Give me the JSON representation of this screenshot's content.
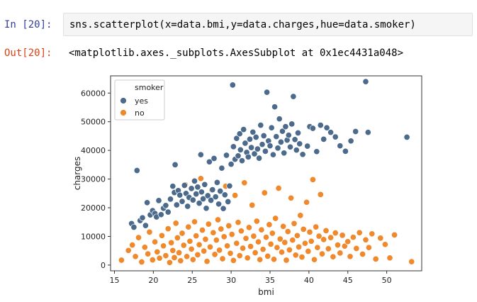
{
  "cell": {
    "in_prompt": "In [20]:",
    "code": "sns.scatterplot(x=data.bmi,y=data.charges,hue=data.smoker)",
    "out_prompt": "Out[20]:",
    "output_text": "<matplotlib.axes._subplots.AxesSubplot at 0x1ec4431a048>"
  },
  "chart_data": {
    "type": "scatter",
    "xlabel": "bmi",
    "ylabel": "charges",
    "xlim": [
      14.5,
      54.5
    ],
    "ylim": [
      -2000,
      66000
    ],
    "xticks": [
      15,
      20,
      25,
      30,
      35,
      40,
      45,
      50
    ],
    "yticks": [
      0,
      10000,
      20000,
      30000,
      40000,
      50000,
      60000
    ],
    "grid": false,
    "legend": {
      "title": "smoker",
      "placement": "top-left",
      "entries": [
        {
          "label": "yes",
          "color": "#4c6a8c"
        },
        {
          "label": "no",
          "color": "#f0882c"
        }
      ]
    },
    "series": [
      {
        "name": "yes",
        "color": "#4c6a8c",
        "points": [
          [
            17.2,
            14500
          ],
          [
            17.5,
            13200
          ],
          [
            17.9,
            33000
          ],
          [
            18.3,
            15500
          ],
          [
            18.6,
            16500
          ],
          [
            19.0,
            13800
          ],
          [
            19.2,
            21800
          ],
          [
            19.6,
            17500
          ],
          [
            19.9,
            19000
          ],
          [
            20.2,
            18000
          ],
          [
            20.4,
            16800
          ],
          [
            20.7,
            22500
          ],
          [
            21.0,
            17600
          ],
          [
            21.3,
            19800
          ],
          [
            21.6,
            20800
          ],
          [
            21.9,
            18500
          ],
          [
            22.2,
            23000
          ],
          [
            22.5,
            27500
          ],
          [
            22.8,
            35000
          ],
          [
            22.7,
            25300
          ],
          [
            23.0,
            21000
          ],
          [
            23.2,
            26000
          ],
          [
            23.4,
            24400
          ],
          [
            23.7,
            22200
          ],
          [
            24.0,
            27800
          ],
          [
            24.2,
            25000
          ],
          [
            24.4,
            20500
          ],
          [
            24.6,
            23600
          ],
          [
            24.9,
            26700
          ],
          [
            25.1,
            22700
          ],
          [
            25.3,
            29300
          ],
          [
            25.5,
            24800
          ],
          [
            25.7,
            27200
          ],
          [
            25.9,
            21600
          ],
          [
            26.1,
            38500
          ],
          [
            26.2,
            25500
          ],
          [
            26.4,
            23100
          ],
          [
            26.6,
            28100
          ],
          [
            26.8,
            19800
          ],
          [
            27.0,
            24200
          ],
          [
            27.2,
            36000
          ],
          [
            27.4,
            22600
          ],
          [
            27.6,
            26300
          ],
          [
            27.8,
            37200
          ],
          [
            28.0,
            23800
          ],
          [
            28.2,
            28800
          ],
          [
            28.4,
            21300
          ],
          [
            28.6,
            25800
          ],
          [
            28.8,
            33800
          ],
          [
            29.0,
            19700
          ],
          [
            29.2,
            24500
          ],
          [
            29.4,
            38300
          ],
          [
            29.6,
            22100
          ],
          [
            29.8,
            27600
          ],
          [
            30.0,
            35200
          ],
          [
            30.2,
            62800
          ],
          [
            30.3,
            41300
          ],
          [
            30.5,
            36900
          ],
          [
            30.7,
            44200
          ],
          [
            30.9,
            38100
          ],
          [
            31.1,
            45800
          ],
          [
            31.2,
            40200
          ],
          [
            31.4,
            36400
          ],
          [
            31.6,
            47300
          ],
          [
            31.8,
            42500
          ],
          [
            32.0,
            39300
          ],
          [
            32.2,
            37700
          ],
          [
            32.4,
            43900
          ],
          [
            32.6,
            41000
          ],
          [
            32.8,
            46400
          ],
          [
            33.0,
            38800
          ],
          [
            33.2,
            44600
          ],
          [
            33.4,
            40500
          ],
          [
            33.6,
            37300
          ],
          [
            33.8,
            48800
          ],
          [
            34.0,
            42100
          ],
          [
            34.2,
            45100
          ],
          [
            34.4,
            39700
          ],
          [
            34.6,
            60300
          ],
          [
            34.8,
            43300
          ],
          [
            35.0,
            41600
          ],
          [
            35.2,
            47900
          ],
          [
            35.4,
            38500
          ],
          [
            35.6,
            55200
          ],
          [
            35.8,
            44800
          ],
          [
            36.0,
            40800
          ],
          [
            36.2,
            51000
          ],
          [
            36.4,
            42900
          ],
          [
            36.6,
            46700
          ],
          [
            36.8,
            39100
          ],
          [
            37.0,
            48300
          ],
          [
            37.2,
            43600
          ],
          [
            37.4,
            45300
          ],
          [
            37.6,
            41200
          ],
          [
            37.8,
            49200
          ],
          [
            38.0,
            58800
          ],
          [
            38.2,
            43800
          ],
          [
            38.4,
            40100
          ],
          [
            38.6,
            46100
          ],
          [
            38.8,
            42300
          ],
          [
            39.2,
            38600
          ],
          [
            39.8,
            41500
          ],
          [
            40.1,
            48300
          ],
          [
            40.5,
            47700
          ],
          [
            41.0,
            39600
          ],
          [
            41.5,
            48800
          ],
          [
            41.9,
            43900
          ],
          [
            42.3,
            47900
          ],
          [
            42.8,
            46300
          ],
          [
            43.4,
            44700
          ],
          [
            44.0,
            41600
          ],
          [
            44.7,
            39700
          ],
          [
            45.4,
            43300
          ],
          [
            46.0,
            46600
          ],
          [
            47.3,
            64000
          ],
          [
            47.6,
            46300
          ],
          [
            52.6,
            44600
          ]
        ]
      },
      {
        "name": "no",
        "color": "#f0882c",
        "points": [
          [
            15.9,
            1700
          ],
          [
            16.8,
            5100
          ],
          [
            17.3,
            7000
          ],
          [
            17.7,
            3000
          ],
          [
            18.1,
            9600
          ],
          [
            18.5,
            1100
          ],
          [
            18.9,
            6200
          ],
          [
            19.3,
            3900
          ],
          [
            19.5,
            11500
          ],
          [
            19.9,
            1800
          ],
          [
            20.2,
            8100
          ],
          [
            20.5,
            4600
          ],
          [
            20.8,
            2400
          ],
          [
            21.1,
            10300
          ],
          [
            21.3,
            6700
          ],
          [
            21.6,
            3300
          ],
          [
            21.9,
            12700
          ],
          [
            22.1,
            900
          ],
          [
            22.3,
            7800
          ],
          [
            22.5,
            5100
          ],
          [
            22.7,
            2600
          ],
          [
            22.9,
            14600
          ],
          [
            23.1,
            9500
          ],
          [
            23.3,
            4300
          ],
          [
            23.5,
            1500
          ],
          [
            23.7,
            11100
          ],
          [
            23.9,
            6900
          ],
          [
            24.1,
            28000
          ],
          [
            24.3,
            3000
          ],
          [
            24.5,
            13300
          ],
          [
            24.7,
            8300
          ],
          [
            24.9,
            5600
          ],
          [
            25.1,
            1900
          ],
          [
            25.3,
            15100
          ],
          [
            25.5,
            10200
          ],
          [
            25.7,
            3600
          ],
          [
            25.9,
            7100
          ],
          [
            26.1,
            30200
          ],
          [
            26.3,
            12200
          ],
          [
            26.5,
            4900
          ],
          [
            26.7,
            9000
          ],
          [
            26.9,
            1300
          ],
          [
            27.1,
            14300
          ],
          [
            27.3,
            6300
          ],
          [
            27.5,
            26200
          ],
          [
            27.7,
            11300
          ],
          [
            27.9,
            3700
          ],
          [
            28.1,
            8700
          ],
          [
            28.3,
            15800
          ],
          [
            28.5,
            5200
          ],
          [
            28.7,
            12600
          ],
          [
            28.9,
            2200
          ],
          [
            29.1,
            9900
          ],
          [
            29.3,
            27500
          ],
          [
            29.5,
            6700
          ],
          [
            29.7,
            13700
          ],
          [
            29.9,
            4100
          ],
          [
            30.1,
            10700
          ],
          [
            30.3,
            1600
          ],
          [
            30.5,
            24300
          ],
          [
            30.7,
            7600
          ],
          [
            30.9,
            14900
          ],
          [
            31.1,
            3300
          ],
          [
            31.3,
            11900
          ],
          [
            31.5,
            5900
          ],
          [
            31.7,
            28700
          ],
          [
            31.9,
            9300
          ],
          [
            32.1,
            2500
          ],
          [
            32.3,
            13100
          ],
          [
            32.5,
            6500
          ],
          [
            32.7,
            20900
          ],
          [
            32.9,
            10100
          ],
          [
            33.1,
            4300
          ],
          [
            33.3,
            15300
          ],
          [
            33.5,
            8100
          ],
          [
            33.7,
            1900
          ],
          [
            33.9,
            12300
          ],
          [
            34.1,
            5500
          ],
          [
            34.3,
            25200
          ],
          [
            34.5,
            9700
          ],
          [
            34.7,
            3100
          ],
          [
            34.9,
            14100
          ],
          [
            35.1,
            7300
          ],
          [
            35.3,
            11100
          ],
          [
            35.5,
            2000
          ],
          [
            35.7,
            16300
          ],
          [
            35.9,
            6100
          ],
          [
            36.1,
            26800
          ],
          [
            36.3,
            9100
          ],
          [
            36.5,
            4500
          ],
          [
            36.7,
            13500
          ],
          [
            36.9,
            7900
          ],
          [
            37.1,
            1700
          ],
          [
            37.3,
            11700
          ],
          [
            37.5,
            5300
          ],
          [
            37.7,
            23400
          ],
          [
            37.9,
            8700
          ],
          [
            38.1,
            14500
          ],
          [
            38.3,
            3500
          ],
          [
            38.5,
            10300
          ],
          [
            38.7,
            6300
          ],
          [
            38.9,
            17300
          ],
          [
            39.1,
            2800
          ],
          [
            39.3,
            12500
          ],
          [
            39.5,
            7600
          ],
          [
            39.7,
            21900
          ],
          [
            39.9,
            4800
          ],
          [
            40.1,
            11500
          ],
          [
            40.3,
            8300
          ],
          [
            40.5,
            29800
          ],
          [
            40.7,
            1900
          ],
          [
            40.9,
            13300
          ],
          [
            41.1,
            6100
          ],
          [
            41.3,
            10100
          ],
          [
            41.5,
            24600
          ],
          [
            41.7,
            3900
          ],
          [
            41.9,
            8900
          ],
          [
            42.2,
            12000
          ],
          [
            42.5,
            5700
          ],
          [
            42.8,
            9600
          ],
          [
            43.1,
            2900
          ],
          [
            43.4,
            11200
          ],
          [
            43.7,
            7000
          ],
          [
            44.0,
            4200
          ],
          [
            44.3,
            10400
          ],
          [
            44.6,
            6600
          ],
          [
            45.0,
            8200
          ],
          [
            45.3,
            3000
          ],
          [
            45.7,
            9700
          ],
          [
            46.1,
            5800
          ],
          [
            46.5,
            11300
          ],
          [
            46.9,
            3800
          ],
          [
            47.3,
            8800
          ],
          [
            47.7,
            6100
          ],
          [
            48.1,
            10900
          ],
          [
            48.6,
            2100
          ],
          [
            49.2,
            9400
          ],
          [
            49.8,
            7200
          ],
          [
            50.4,
            2500
          ],
          [
            51.0,
            10500
          ],
          [
            53.2,
            1200
          ]
        ]
      }
    ]
  }
}
